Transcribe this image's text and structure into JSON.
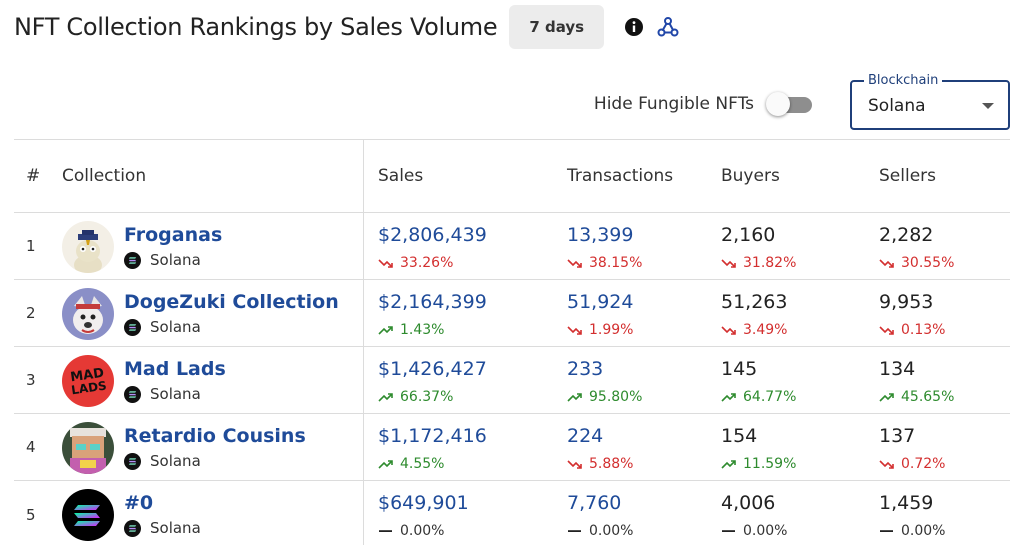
{
  "header": {
    "title": "NFT Collection Rankings by Sales Volume",
    "period": "7 days",
    "info_icon": "info-icon",
    "webhook_icon": "webhook-icon"
  },
  "filters": {
    "hide_fungible_label": "Hide Fungible NFTs",
    "hide_fungible_on": false,
    "blockchain_label": "Blockchain",
    "blockchain_value": "Solana"
  },
  "colors": {
    "accent": "#1f4b99",
    "up": "#2e8b2e",
    "down": "#d32f2f"
  },
  "table": {
    "columns": [
      "#",
      "Collection",
      "Sales",
      "Transactions",
      "Buyers",
      "Sellers"
    ],
    "rows": [
      {
        "rank": "1",
        "name": "Froganas",
        "chain": "Solana",
        "sales": "$2,806,439",
        "sales_change": "33.26%",
        "sales_dir": "down",
        "transactions": "13,399",
        "transactions_change": "38.15%",
        "transactions_dir": "down",
        "buyers": "2,160",
        "buyers_change": "31.82%",
        "buyers_dir": "down",
        "sellers": "2,282",
        "sellers_change": "30.55%",
        "sellers_dir": "down"
      },
      {
        "rank": "2",
        "name": "DogeZuki Collection",
        "chain": "Solana",
        "sales": "$2,164,399",
        "sales_change": "1.43%",
        "sales_dir": "up",
        "transactions": "51,924",
        "transactions_change": "1.99%",
        "transactions_dir": "down",
        "buyers": "51,263",
        "buyers_change": "3.49%",
        "buyers_dir": "down",
        "sellers": "9,953",
        "sellers_change": "0.13%",
        "sellers_dir": "down"
      },
      {
        "rank": "3",
        "name": "Mad Lads",
        "chain": "Solana",
        "sales": "$1,426,427",
        "sales_change": "66.37%",
        "sales_dir": "up",
        "transactions": "233",
        "transactions_change": "95.80%",
        "transactions_dir": "up",
        "buyers": "145",
        "buyers_change": "64.77%",
        "buyers_dir": "up",
        "sellers": "134",
        "sellers_change": "45.65%",
        "sellers_dir": "up"
      },
      {
        "rank": "4",
        "name": "Retardio Cousins",
        "chain": "Solana",
        "sales": "$1,172,416",
        "sales_change": "4.55%",
        "sales_dir": "up",
        "transactions": "224",
        "transactions_change": "5.88%",
        "transactions_dir": "down",
        "buyers": "154",
        "buyers_change": "11.59%",
        "buyers_dir": "up",
        "sellers": "137",
        "sellers_change": "0.72%",
        "sellers_dir": "down"
      },
      {
        "rank": "5",
        "name": "#0",
        "chain": "Solana",
        "sales": "$649,901",
        "sales_change": "0.00%",
        "sales_dir": "flat",
        "transactions": "7,760",
        "transactions_change": "0.00%",
        "transactions_dir": "flat",
        "buyers": "4,006",
        "buyers_change": "0.00%",
        "buyers_dir": "flat",
        "sellers": "1,459",
        "sellers_change": "0.00%",
        "sellers_dir": "flat"
      }
    ]
  }
}
